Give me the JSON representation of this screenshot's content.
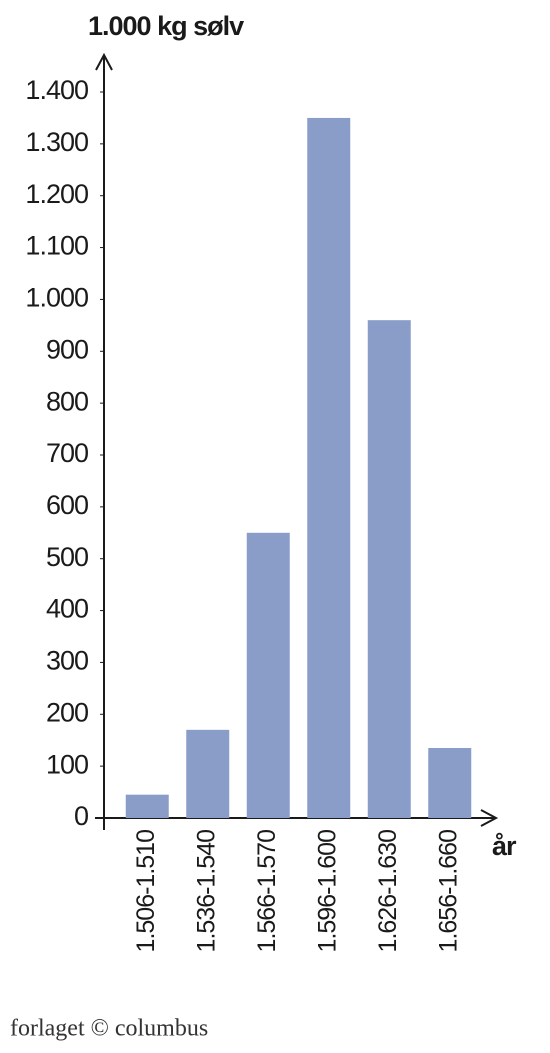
{
  "chart_data": {
    "type": "bar",
    "y_label": "1.000 kg sølv",
    "x_label": "år",
    "categories": [
      "1.506-1.510",
      "1.536-1.540",
      "1.566-1.570",
      "1.596-1.600",
      "1.626-1.630",
      "1.656-1.660"
    ],
    "values": [
      45,
      170,
      550,
      1350,
      960,
      135
    ],
    "color": "#8a9dc8",
    "ylim": [
      0,
      1400
    ],
    "yticks": [
      0,
      100,
      200,
      300,
      400,
      500,
      600,
      700,
      800,
      900,
      {
        "value": 1000,
        "label": "1.000"
      },
      {
        "value": 1100,
        "label": "1.100"
      },
      {
        "value": 1200,
        "label": "1.200"
      },
      {
        "value": 1300,
        "label": "1.300"
      },
      {
        "value": 1400,
        "label": "1.400"
      }
    ],
    "grid": false,
    "footer": "forlaget © columbus"
  }
}
